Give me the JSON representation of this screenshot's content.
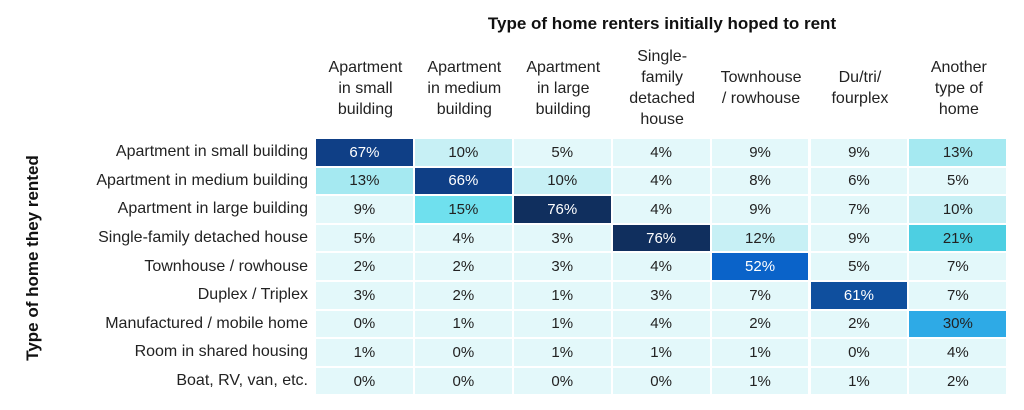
{
  "chart_data": {
    "type": "heatmap",
    "title": "Type of home renters initially hoped to rent",
    "xlabel": "Type of home renters initially hoped to rent",
    "ylabel": "Type of home they rented",
    "columns": [
      "Apartment\nin small\nbuilding",
      "Apartment\nin medium\nbuilding",
      "Apartment\nin large\nbuilding",
      "Single-\nfamily\ndetached\nhouse",
      "Townhouse\n/ rowhouse",
      "Du/tri/\nfourplex",
      "Another\ntype of\nhome"
    ],
    "rows": [
      "Apartment in small building",
      "Apartment in medium building",
      "Apartment in large building",
      "Single-family detached house",
      "Townhouse / rowhouse",
      "Duplex / Triplex",
      "Manufactured / mobile home",
      "Room in shared housing",
      "Boat, RV, van, etc."
    ],
    "values": [
      [
        67,
        10,
        5,
        4,
        9,
        9,
        13
      ],
      [
        13,
        66,
        10,
        4,
        8,
        6,
        5
      ],
      [
        9,
        15,
        76,
        4,
        9,
        7,
        10
      ],
      [
        5,
        4,
        3,
        76,
        12,
        9,
        21
      ],
      [
        2,
        2,
        3,
        4,
        52,
        5,
        7
      ],
      [
        3,
        2,
        1,
        3,
        7,
        61,
        7
      ],
      [
        0,
        1,
        1,
        4,
        2,
        2,
        30
      ],
      [
        1,
        0,
        1,
        1,
        1,
        0,
        4
      ],
      [
        0,
        0,
        0,
        0,
        1,
        1,
        2
      ]
    ],
    "value_suffix": "%",
    "colors": {
      "v0_9": "#e3f8fa",
      "v10_14": "#c7f0f5",
      "v10_14_alt": "#a5e9f1",
      "v15_29": "#6fe0ee",
      "v21": "#4dcfe2",
      "v30": "#2eaae6",
      "v52": "#0a63c9",
      "v61": "#0f4f9e",
      "v66_67": "#0f3f86",
      "v76": "#102f5e",
      "text_light": "#ffffff",
      "text_dark": "#222222"
    }
  }
}
